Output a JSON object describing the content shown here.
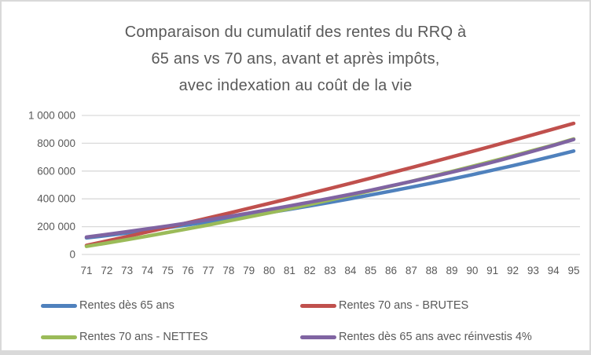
{
  "title": {
    "line1": "Comparaison du cumulatif des rentes du RRQ à",
    "line2": "65 ans vs 70 ans, avant et après impôts,",
    "line3": "avec indexation au coût de la vie"
  },
  "colors": {
    "text": "#595959",
    "gridline": "#D9D9D9",
    "border": "#D9D9D9"
  },
  "chart_data": {
    "type": "line",
    "title": "Comparaison du cumulatif des rentes du RRQ à 65 ans vs 70 ans, avant et après impôts, avec indexation au coût de la vie",
    "categories": [
      71,
      72,
      73,
      74,
      75,
      76,
      77,
      78,
      79,
      80,
      81,
      82,
      83,
      84,
      85,
      86,
      87,
      88,
      89,
      90,
      91,
      92,
      93,
      94,
      95
    ],
    "xlabel": "",
    "ylabel": "",
    "ylim": [
      0,
      1000000
    ],
    "grid": true,
    "legend_position": "bottom",
    "yticks": [
      {
        "label": "0",
        "value": 0
      },
      {
        "label": "200 000",
        "value": 200000
      },
      {
        "label": "400 000",
        "value": 400000
      },
      {
        "label": "600 000",
        "value": 600000
      },
      {
        "label": "800 000",
        "value": 800000
      },
      {
        "label": "1 000 000",
        "value": 1000000
      }
    ],
    "series": [
      {
        "name": "Rentes dès 65 ans",
        "color": "#4F81BD",
        "values": [
          119000,
          136000,
          154000,
          173000,
          193000,
          213000,
          234000,
          256000,
          278000,
          301000,
          325000,
          350000,
          375000,
          401000,
          428000,
          456000,
          484000,
          513000,
          543000,
          574000,
          606000,
          639000,
          673000,
          708000,
          744000
        ]
      },
      {
        "name": "Rentes 70 ans - BRUTES",
        "color": "#C0504D",
        "values": [
          65000,
          97000,
          129000,
          162000,
          195000,
          229000,
          263000,
          297000,
          332000,
          367000,
          403000,
          439000,
          475000,
          512000,
          549000,
          587000,
          625000,
          663000,
          702000,
          741000,
          781000,
          821000,
          861000,
          902000,
          943000
        ]
      },
      {
        "name": "Rentes 70 ans - NETTES",
        "color": "#9BBB59",
        "values": [
          58000,
          82000,
          107000,
          132000,
          158000,
          185000,
          212000,
          241000,
          270000,
          299000,
          329000,
          360000,
          392000,
          425000,
          458000,
          491000,
          526000,
          561000,
          597000,
          634000,
          671000,
          709000,
          748000,
          787000,
          831000
        ]
      },
      {
        "name": "Rentes dès 65 ans avec réinvestis 4%",
        "color": "#8064A2",
        "values": [
          125000,
          144000,
          164000,
          184000,
          205000,
          227000,
          250000,
          273000,
          298000,
          323000,
          349000,
          376000,
          404000,
          432000,
          462000,
          494000,
          525000,
          558000,
          592000,
          627000,
          664000,
          703000,
          743000,
          784000,
          827000
        ]
      }
    ]
  }
}
